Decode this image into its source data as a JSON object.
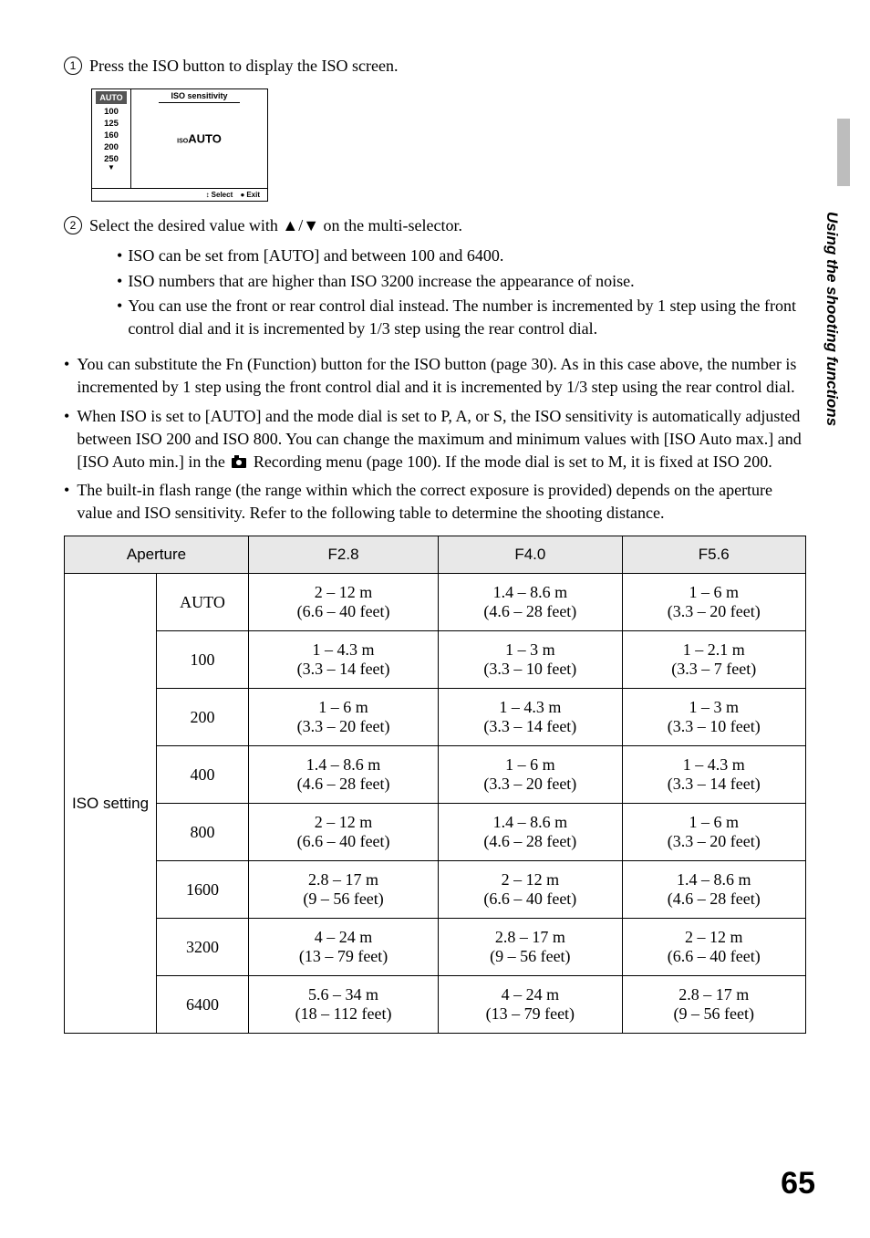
{
  "sideLabel": "Using the shooting functions",
  "pageNumber": "65",
  "step1": "Press the ISO button to display the ISO screen.",
  "screen": {
    "selected": "AUTO",
    "options": [
      "100",
      "125",
      "160",
      "200",
      "250"
    ],
    "title": "ISO sensitivity",
    "centerPrefix": "ISO",
    "centerValue": "AUTO",
    "footerSelect": "Select",
    "footerExit": "Exit"
  },
  "step2": "Select the desired value with ▲/▼ on the multi-selector.",
  "sub": {
    "b1": "ISO can be set from [AUTO] and between 100 and 6400.",
    "b2": "ISO numbers that are higher than ISO 3200 increase the appearance of noise.",
    "b3": "You can use the front or rear control dial instead. The number is incremented by 1 step using the front control dial and it is incremented by 1/3 step using the rear control dial."
  },
  "bul": {
    "b1": "You can substitute the Fn (Function) button for the ISO button (page 30). As in this case above, the number is incremented by 1 step using the front control dial and it is incremented by 1/3 step using the rear control dial.",
    "b2a": "When ISO is set to [AUTO] and the mode dial is set to P, A, or S, the ISO sensitivity is automatically adjusted between ISO 200 and ISO 800. You can change the maximum and minimum values with [ISO Auto max.] and [ISO Auto min.] in the ",
    "b2b": " Recording menu (page 100). If the mode dial is set to M, it is fixed at ISO 200.",
    "b3": "The built-in flash range (the range within which the correct exposure is provided) depends on the aperture value and ISO sensitivity. Refer to the following table to determine the shooting distance."
  },
  "table": {
    "hAperture": "Aperture",
    "hF28": "F2.8",
    "hF40": "F4.0",
    "hF56": "F5.6",
    "rowHead": "ISO setting",
    "rows": [
      {
        "iso": "AUTO",
        "f28a": "2 – 12 m",
        "f28b": "(6.6 – 40 feet)",
        "f40a": "1.4 – 8.6 m",
        "f40b": "(4.6 – 28 feet)",
        "f56a": "1 – 6 m",
        "f56b": "(3.3 – 20 feet)"
      },
      {
        "iso": "100",
        "f28a": "1 – 4.3 m",
        "f28b": "(3.3 – 14 feet)",
        "f40a": "1 – 3 m",
        "f40b": "(3.3 – 10 feet)",
        "f56a": "1 – 2.1 m",
        "f56b": "(3.3 – 7 feet)"
      },
      {
        "iso": "200",
        "f28a": "1 – 6 m",
        "f28b": "(3.3 – 20 feet)",
        "f40a": "1 – 4.3 m",
        "f40b": "(3.3 – 14 feet)",
        "f56a": "1 – 3 m",
        "f56b": "(3.3 – 10 feet)"
      },
      {
        "iso": "400",
        "f28a": "1.4 – 8.6 m",
        "f28b": "(4.6 – 28 feet)",
        "f40a": "1 – 6 m",
        "f40b": "(3.3 – 20 feet)",
        "f56a": "1 – 4.3 m",
        "f56b": "(3.3 – 14 feet)"
      },
      {
        "iso": "800",
        "f28a": "2 – 12 m",
        "f28b": "(6.6 – 40 feet)",
        "f40a": "1.4 – 8.6 m",
        "f40b": "(4.6 – 28 feet)",
        "f56a": "1 – 6 m",
        "f56b": "(3.3 – 20 feet)"
      },
      {
        "iso": "1600",
        "f28a": "2.8 – 17 m",
        "f28b": "(9 – 56 feet)",
        "f40a": "2 – 12 m",
        "f40b": "(6.6 – 40 feet)",
        "f56a": "1.4 – 8.6 m",
        "f56b": "(4.6 – 28 feet)"
      },
      {
        "iso": "3200",
        "f28a": "4 – 24 m",
        "f28b": "(13 – 79 feet)",
        "f40a": "2.8 – 17 m",
        "f40b": "(9 – 56 feet)",
        "f56a": "2 – 12 m",
        "f56b": "(6.6 – 40 feet)"
      },
      {
        "iso": "6400",
        "f28a": "5.6 – 34 m",
        "f28b": "(18 – 112 feet)",
        "f40a": "4 – 24 m",
        "f40b": "(13 – 79 feet)",
        "f56a": "2.8 – 17 m",
        "f56b": "(9 – 56 feet)"
      }
    ]
  }
}
